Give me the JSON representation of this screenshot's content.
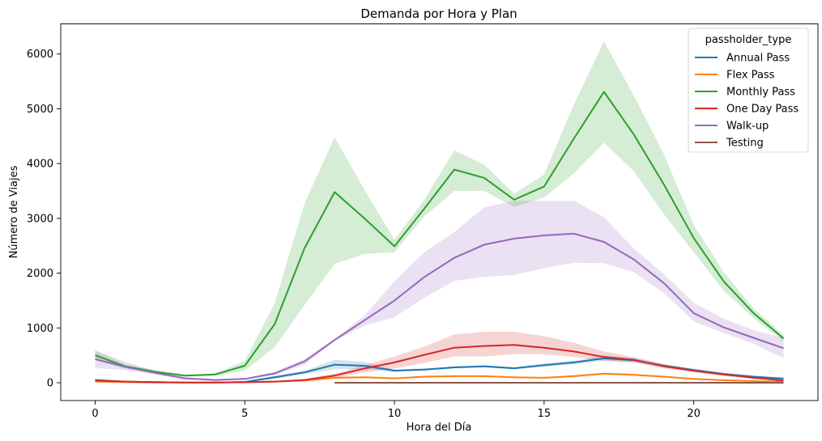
{
  "chart_data": {
    "type": "line",
    "title": "Demanda por Hora y Plan",
    "xlabel": "Hora del Día",
    "ylabel": "Número de Viajes",
    "xlim": [
      -1.15,
      24.15
    ],
    "ylim": [
      -325,
      6550
    ],
    "xticks": [
      0,
      5,
      10,
      15,
      20
    ],
    "yticks": [
      0,
      1000,
      2000,
      3000,
      4000,
      5000,
      6000
    ],
    "grid": false,
    "legend": {
      "title": "passholder_type",
      "placement": "top-right"
    },
    "series": [
      {
        "name": "Annual Pass",
        "color": "#1f77b4",
        "x": [
          0,
          1,
          2,
          3,
          4,
          5,
          6,
          7,
          8,
          9,
          10,
          11,
          12,
          13,
          14,
          15,
          16,
          17,
          18,
          19,
          20,
          21,
          22,
          23
        ],
        "values": [
          50,
          20,
          10,
          5,
          5,
          15,
          100,
          190,
          330,
          310,
          220,
          240,
          280,
          300,
          265,
          320,
          370,
          445,
          410,
          310,
          230,
          160,
          110,
          75
        ],
        "lower": [
          30,
          10,
          5,
          2,
          2,
          8,
          70,
          160,
          250,
          250,
          200,
          220,
          260,
          280,
          245,
          290,
          340,
          400,
          370,
          280,
          200,
          140,
          90,
          55
        ],
        "upper": [
          70,
          30,
          15,
          8,
          8,
          25,
          130,
          220,
          420,
          380,
          240,
          260,
          300,
          320,
          285,
          350,
          400,
          500,
          450,
          340,
          260,
          180,
          130,
          95
        ]
      },
      {
        "name": "Flex Pass",
        "color": "#ff7f0e",
        "x": [
          0,
          1,
          2,
          3,
          4,
          5,
          6,
          7,
          8,
          9,
          10,
          11,
          12,
          13,
          14,
          15,
          16,
          17,
          18,
          19,
          20,
          21,
          22,
          23
        ],
        "values": [
          20,
          10,
          5,
          3,
          3,
          8,
          20,
          40,
          90,
          100,
          80,
          110,
          120,
          120,
          100,
          90,
          120,
          165,
          145,
          110,
          70,
          45,
          30,
          20
        ],
        "lower": [
          10,
          5,
          2,
          1,
          1,
          4,
          12,
          30,
          70,
          85,
          70,
          95,
          105,
          105,
          85,
          75,
          100,
          145,
          125,
          95,
          55,
          35,
          20,
          12
        ],
        "upper": [
          30,
          15,
          8,
          5,
          5,
          12,
          28,
          50,
          110,
          115,
          90,
          125,
          135,
          135,
          115,
          105,
          140,
          185,
          165,
          125,
          85,
          55,
          40,
          28
        ]
      },
      {
        "name": "Monthly Pass",
        "color": "#2ca02c",
        "x": [
          0,
          1,
          2,
          3,
          4,
          5,
          6,
          7,
          8,
          9,
          10,
          11,
          12,
          13,
          14,
          15,
          16,
          17,
          18,
          19,
          20,
          21,
          22,
          23
        ],
        "values": [
          500,
          300,
          200,
          130,
          150,
          310,
          1070,
          2460,
          3480,
          3000,
          2490,
          3180,
          3890,
          3740,
          3340,
          3580,
          4460,
          5310,
          4530,
          3620,
          2640,
          1850,
          1270,
          810
        ],
        "lower": [
          420,
          260,
          170,
          110,
          130,
          220,
          650,
          1420,
          2170,
          2350,
          2380,
          3040,
          3500,
          3500,
          3210,
          3380,
          3820,
          4380,
          3860,
          3080,
          2380,
          1680,
          1180,
          760
        ],
        "upper": [
          580,
          340,
          230,
          150,
          170,
          400,
          1450,
          3280,
          4480,
          3520,
          2610,
          3340,
          4240,
          3980,
          3450,
          3800,
          5080,
          6230,
          5240,
          4170,
          2880,
          2020,
          1360,
          870
        ]
      },
      {
        "name": "One Day Pass",
        "color": "#d62728",
        "x": [
          0,
          1,
          2,
          3,
          4,
          5,
          6,
          7,
          8,
          9,
          10,
          11,
          12,
          13,
          14,
          15,
          16,
          17,
          18,
          19,
          20,
          21,
          22,
          23
        ],
        "values": [
          40,
          20,
          10,
          5,
          5,
          10,
          20,
          50,
          130,
          260,
          370,
          510,
          640,
          670,
          690,
          640,
          570,
          470,
          420,
          300,
          220,
          150,
          90,
          40
        ],
        "lower": [
          25,
          12,
          5,
          2,
          2,
          5,
          12,
          30,
          90,
          190,
          260,
          360,
          480,
          480,
          520,
          520,
          470,
          400,
          370,
          260,
          190,
          120,
          70,
          30
        ],
        "upper": [
          55,
          28,
          15,
          8,
          8,
          15,
          28,
          70,
          170,
          320,
          480,
          660,
          880,
          930,
          930,
          850,
          730,
          570,
          470,
          340,
          250,
          180,
          110,
          50
        ]
      },
      {
        "name": "Walk-up",
        "color": "#9467bd",
        "x": [
          0,
          1,
          2,
          3,
          4,
          5,
          6,
          7,
          8,
          9,
          10,
          11,
          12,
          13,
          14,
          15,
          16,
          17,
          18,
          19,
          20,
          21,
          22,
          23
        ],
        "values": [
          430,
          290,
          180,
          80,
          50,
          70,
          170,
          390,
          780,
          1140,
          1500,
          1930,
          2280,
          2520,
          2630,
          2690,
          2720,
          2570,
          2250,
          1820,
          1270,
          1010,
          820,
          630
        ],
        "lower": [
          270,
          230,
          150,
          60,
          40,
          55,
          140,
          330,
          760,
          1040,
          1200,
          1550,
          1860,
          1930,
          1970,
          2090,
          2190,
          2180,
          2020,
          1640,
          1120,
          910,
          710,
          450
        ],
        "upper": [
          600,
          380,
          220,
          100,
          60,
          85,
          200,
          440,
          800,
          1230,
          1850,
          2380,
          2750,
          3200,
          3320,
          3320,
          3320,
          3020,
          2450,
          1980,
          1460,
          1170,
          960,
          820
        ]
      },
      {
        "name": "Testing",
        "color": "#8c564b",
        "x": [
          8,
          9,
          10,
          11,
          12,
          13,
          14,
          15,
          16,
          17,
          18,
          19,
          20,
          21,
          22,
          23
        ],
        "values": [
          0,
          0,
          0,
          0,
          0,
          0,
          0,
          0,
          0,
          0,
          0,
          0,
          0,
          0,
          0,
          0
        ]
      }
    ]
  }
}
